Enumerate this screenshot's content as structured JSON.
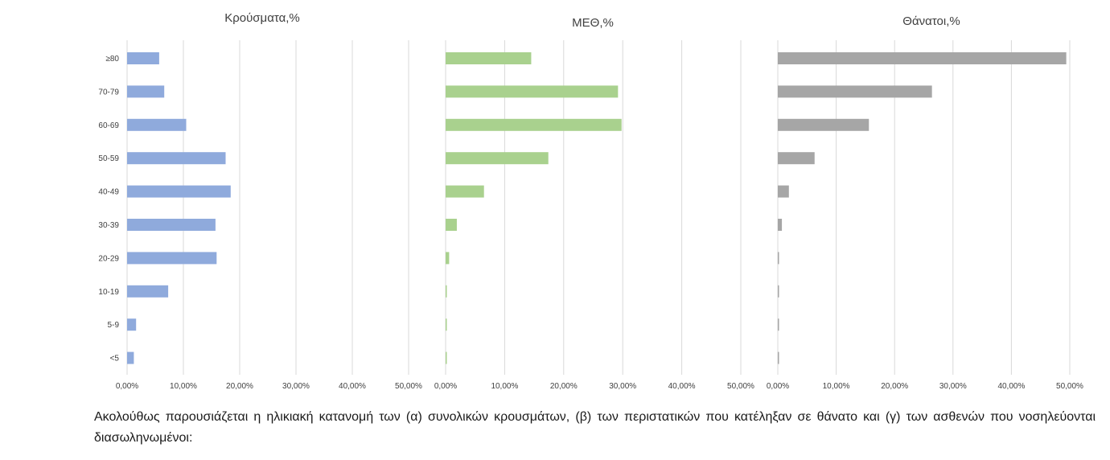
{
  "chart_data": [
    {
      "type": "bar",
      "orientation": "horizontal",
      "title": "Κρούσματα,%",
      "categories": [
        "≥80",
        "70-79",
        "60-69",
        "50-59",
        "40-49",
        "30-39",
        "20-29",
        "10-19",
        "5-9",
        "<5"
      ],
      "values": [
        5.7,
        6.6,
        10.5,
        17.5,
        18.4,
        15.7,
        15.9,
        7.3,
        1.6,
        1.2
      ],
      "xlim": [
        0,
        50
      ],
      "xticks": [
        "0,00%",
        "10,00%",
        "20,00%",
        "30,00%",
        "40,00%",
        "50,00%"
      ],
      "grid": true,
      "color": "#8faadc"
    },
    {
      "type": "bar",
      "orientation": "horizontal",
      "title": "ΜΕΘ,%",
      "categories": [
        "≥80",
        "70-79",
        "60-69",
        "50-59",
        "40-49",
        "30-39",
        "20-29",
        "10-19",
        "5-9",
        "<5"
      ],
      "values": [
        14.5,
        29.2,
        29.8,
        17.4,
        6.5,
        1.9,
        0.6,
        0.1,
        0.1,
        0.1
      ],
      "xlim": [
        0,
        50
      ],
      "xticks": [
        "0,00%",
        "10,00%",
        "20,00%",
        "30,00%",
        "40,00%",
        "50,00%"
      ],
      "grid": true,
      "color": "#a9d18e"
    },
    {
      "type": "bar",
      "orientation": "horizontal",
      "title": "Θάνατοι,%",
      "categories": [
        "≥80",
        "70-79",
        "60-69",
        "50-59",
        "40-49",
        "30-39",
        "20-29",
        "10-19",
        "5-9",
        "<5"
      ],
      "values": [
        49.4,
        26.4,
        15.6,
        6.3,
        1.9,
        0.7,
        0.15,
        0.1,
        0.0,
        0.1
      ],
      "xlim": [
        0,
        50
      ],
      "xticks": [
        "0,00%",
        "10,00%",
        "20,00%",
        "30,00%",
        "40,00%",
        "50,00%"
      ],
      "grid": true,
      "color": "#a6a6a6"
    }
  ],
  "caption": "Ακολούθως παρουσιάζεται η ηλικιακή κατανομή των (α) συνολικών κρουσμάτων, (β) των περιστατικών που κατέληξαν σε θάνατο και (γ) των ασθενών που νοσηλεύονται διασωληνωμένοι:"
}
